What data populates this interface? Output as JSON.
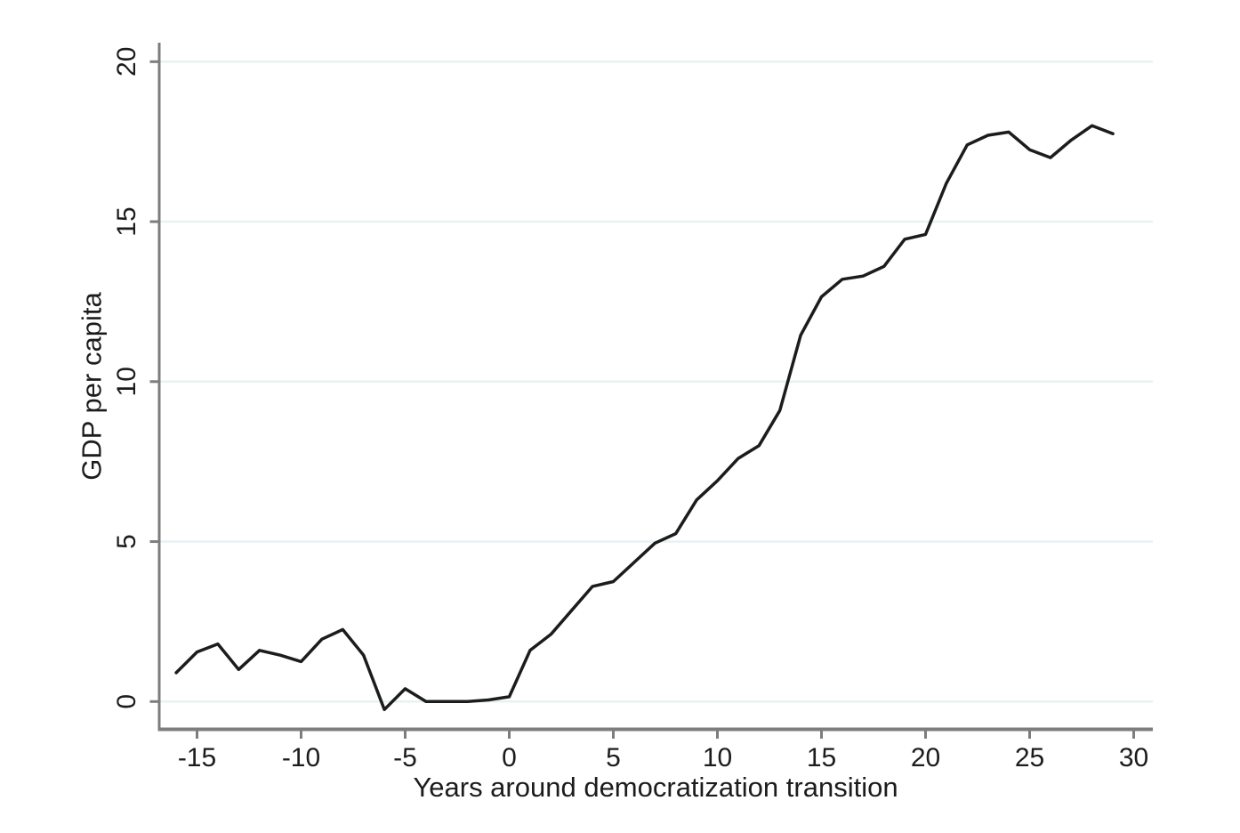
{
  "chart_data": {
    "type": "line",
    "title": "",
    "xlabel": "Years around democratization transition",
    "ylabel": "GDP per capita",
    "x_ticks": [
      -15,
      -10,
      -5,
      0,
      5,
      10,
      15,
      20,
      25,
      30
    ],
    "y_ticks": [
      0,
      5,
      10,
      15,
      20
    ],
    "xlim": [
      -16.8,
      30.9
    ],
    "ylim": [
      -0.9,
      20.6
    ],
    "grid": "horizontal-only",
    "legend_position": "none",
    "series": [
      {
        "name": "GDP per capita",
        "x": [
          -16,
          -15,
          -14,
          -13,
          -12,
          -11,
          -10,
          -9,
          -8,
          -7,
          -6,
          -5,
          -4,
          -3,
          -2,
          -1,
          0,
          1,
          2,
          3,
          4,
          5,
          6,
          7,
          8,
          9,
          10,
          11,
          12,
          13,
          14,
          15,
          16,
          17,
          18,
          19,
          20,
          21,
          22,
          23,
          24,
          25,
          26,
          27,
          28,
          29
        ],
        "y": [
          0.9,
          1.55,
          1.8,
          1.0,
          1.6,
          1.45,
          1.25,
          1.95,
          2.25,
          1.45,
          -0.25,
          0.4,
          0.0,
          0.0,
          0.0,
          0.05,
          0.15,
          1.6,
          2.1,
          2.85,
          3.6,
          3.75,
          4.35,
          4.95,
          5.25,
          6.3,
          6.9,
          7.6,
          8.0,
          9.1,
          11.45,
          12.65,
          13.2,
          13.3,
          13.6,
          14.45,
          14.6,
          16.2,
          17.4,
          17.7,
          17.8,
          17.25,
          17.0,
          17.55,
          18.0,
          17.75
        ]
      }
    ]
  },
  "colors": {
    "background": "#ffffff",
    "line": "#1c1c1c",
    "grid": "#e9f1f2",
    "axis": "#7d7d7d",
    "text": "#1c1c1c"
  }
}
